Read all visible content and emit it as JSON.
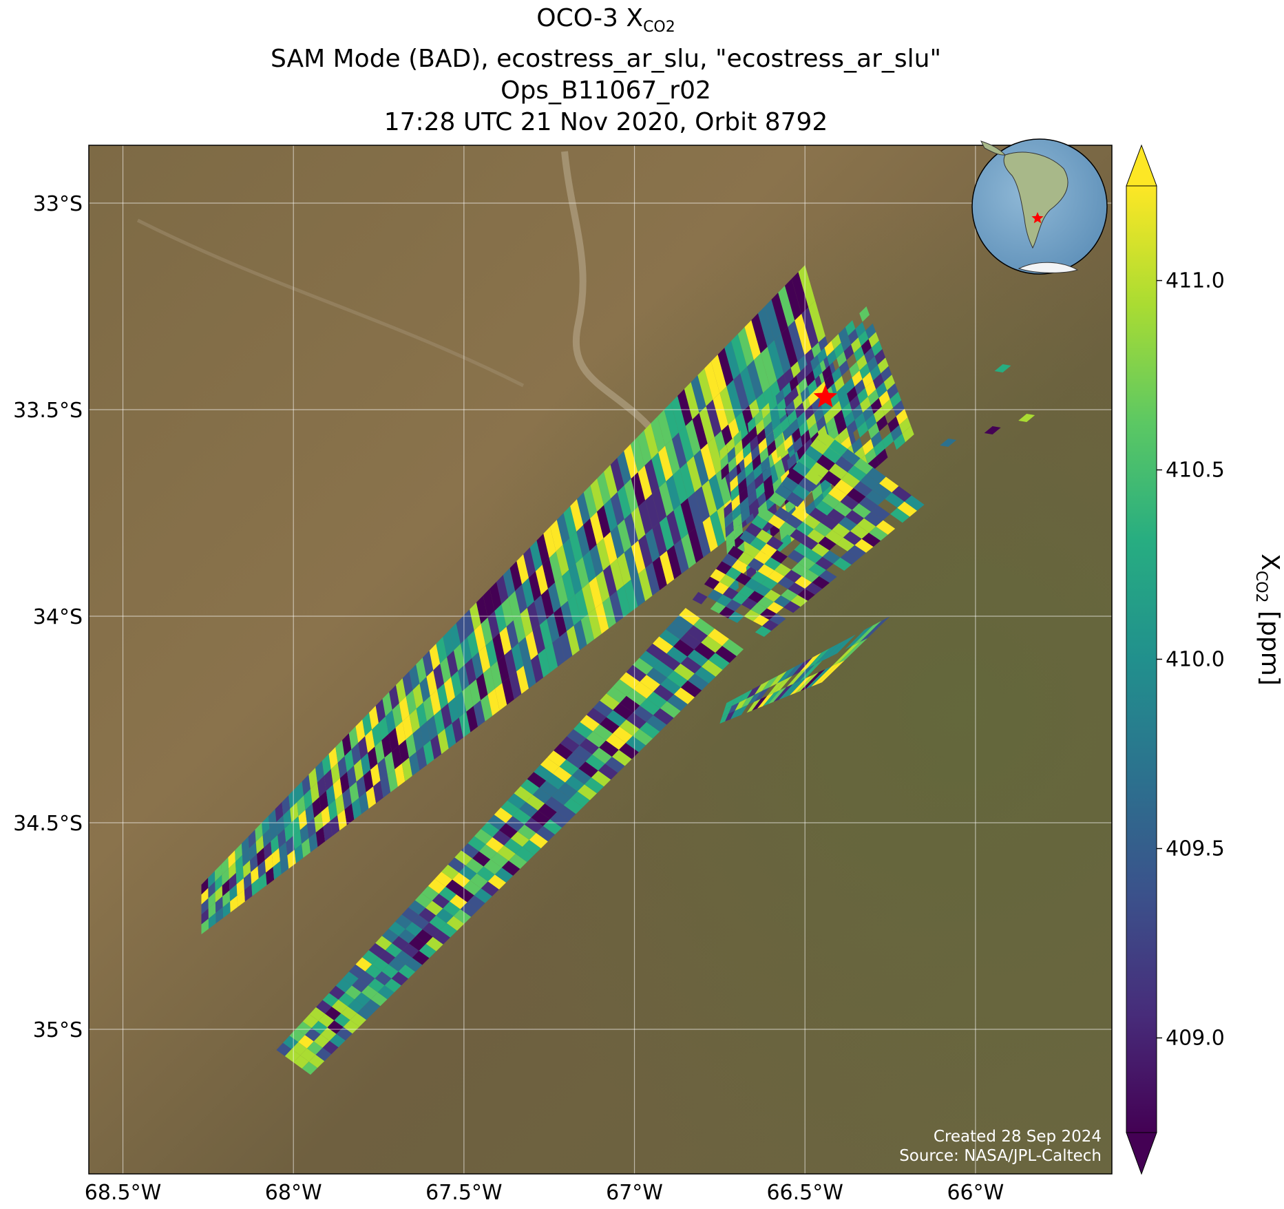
{
  "figure": {
    "title_line1_prefix": "OCO-3 X",
    "title_line1_sub": "CO2",
    "title_line2": "SAM Mode (BAD), ecostress_ar_slu, \"ecostress_ar_slu\"",
    "title_line3": "Ops_B11067_r02",
    "title_line4": "17:28 UTC 21 Nov 2020, Orbit 8792",
    "credit_created": "Created 28 Sep 2024",
    "credit_source": "Source: NASA/JPL-Caltech"
  },
  "map": {
    "lon_range": [
      -68.6,
      -65.6
    ],
    "lat_range": [
      -35.35,
      -32.86
    ],
    "lon_ticks": [
      "68.5°W",
      "68°W",
      "67.5°W",
      "67°W",
      "66.5°W",
      "66°W"
    ],
    "lon_tick_values": [
      -68.5,
      -68.0,
      -67.5,
      -67.0,
      -66.5,
      -66.0
    ],
    "lat_ticks": [
      "33°S",
      "33.5°S",
      "34°S",
      "34.5°S",
      "35°S"
    ],
    "lat_tick_values": [
      -33.0,
      -33.5,
      -34.0,
      -34.5,
      -35.0
    ],
    "target_marker": {
      "lon": -66.44,
      "lat": -33.47,
      "color": "#ff0000"
    },
    "background": "satellite imagery, arid brown terrain",
    "swaths": [
      {
        "name": "swath-1",
        "corners": [
          [
            -68.27,
            -34.65
          ],
          [
            -66.5,
            -33.15
          ],
          [
            -66.35,
            -33.58
          ],
          [
            -68.27,
            -34.77
          ]
        ]
      },
      {
        "name": "swath-2",
        "corners": [
          [
            -68.05,
            -35.05
          ],
          [
            -66.85,
            -33.98
          ],
          [
            -66.68,
            -34.08
          ],
          [
            -67.95,
            -35.11
          ]
        ]
      },
      {
        "name": "swath-3",
        "corners": [
          [
            -66.75,
            -33.6
          ],
          [
            -66.32,
            -33.25
          ],
          [
            -66.18,
            -33.56
          ],
          [
            -66.72,
            -33.95
          ]
        ]
      },
      {
        "name": "swath-4",
        "corners": [
          [
            -66.83,
            -33.96
          ],
          [
            -66.45,
            -33.55
          ],
          [
            -66.15,
            -33.73
          ],
          [
            -66.62,
            -34.05
          ]
        ]
      },
      {
        "name": "swath-5",
        "corners": [
          [
            -66.73,
            -34.21
          ],
          [
            -66.25,
            -34.0
          ],
          [
            -66.45,
            -34.16
          ],
          [
            -66.75,
            -34.26
          ]
        ]
      }
    ],
    "scattered_points": [
      {
        "lon": -65.85,
        "lat": -33.52
      },
      {
        "lon": -65.95,
        "lat": -33.55
      },
      {
        "lon": -65.92,
        "lat": -33.4
      },
      {
        "lon": -66.08,
        "lat": -33.58
      }
    ]
  },
  "inset": {
    "description_icon": "globe-icon",
    "star_color": "#ff0000"
  },
  "colorbar": {
    "label_prefix": "X",
    "label_sub": "CO2",
    "label_suffix": " [ppm]",
    "range": [
      408.75,
      411.25
    ],
    "ticks": [
      "411.0",
      "410.5",
      "410.0",
      "409.5",
      "409.0"
    ],
    "tick_values": [
      411.0,
      410.5,
      410.0,
      409.5,
      409.0
    ],
    "colors": [
      "#440154",
      "#472c7a",
      "#3b518b",
      "#2c718e",
      "#21908d",
      "#27ad81",
      "#5cc863",
      "#aadc32",
      "#fde725"
    ]
  }
}
